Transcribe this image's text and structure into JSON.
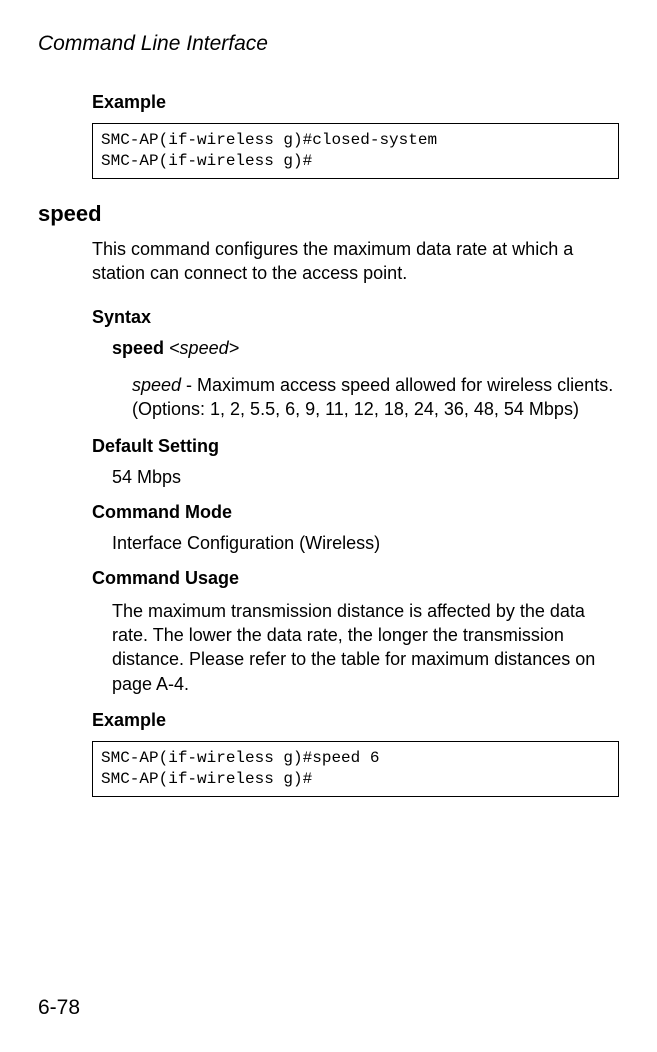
{
  "page_header": "Command Line Interface",
  "example1": {
    "label": "Example",
    "code": "SMC-AP(if-wireless g)#closed-system\nSMC-AP(if-wireless g)#"
  },
  "command": {
    "name": "speed",
    "description": "This command configures the maximum data rate at which a station can connect to the access point."
  },
  "syntax": {
    "label": "Syntax",
    "keyword": "speed",
    "param": "<speed>",
    "param_name": "speed",
    "param_desc": " - Maximum access speed allowed for wireless clients. (Options: 1, 2, 5.5, 6, 9, 11, 12, 18, 24, 36, 48, 54 Mbps)"
  },
  "default_setting": {
    "label": "Default Setting",
    "value": "54 Mbps"
  },
  "command_mode": {
    "label": "Command Mode",
    "value": "Interface Configuration (Wireless)"
  },
  "command_usage": {
    "label": "Command Usage",
    "value": "The maximum transmission distance is affected by the data rate. The lower the data rate, the longer the transmission distance. Please refer to the table for maximum distances on page A-4."
  },
  "example2": {
    "label": "Example",
    "code": "SMC-AP(if-wireless g)#speed 6\nSMC-AP(if-wireless g)#"
  },
  "page_number": "6-78"
}
